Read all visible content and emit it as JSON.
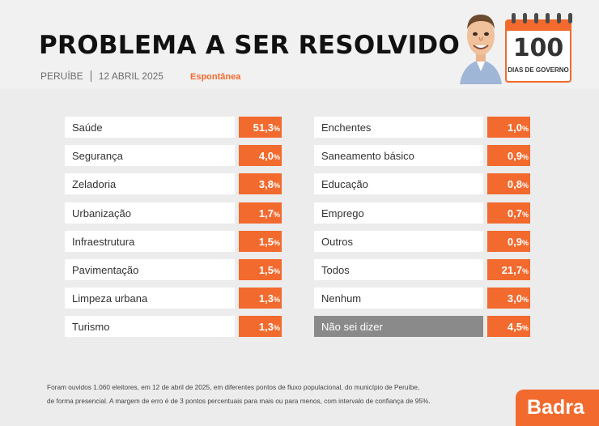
{
  "header": {
    "title": "PROBLEMA A SER RESOLVIDO",
    "city": "PERUÍBE",
    "date": "12 ABRIL 2025",
    "mode": "Espontânea",
    "badge_number": "100",
    "badge_text": "DIAS DE GOVERNO"
  },
  "chart_data": {
    "type": "table",
    "unit": "%",
    "categories": [
      "Saúde",
      "Segurança",
      "Zeladoria",
      "Urbanização",
      "Infraestrutura",
      "Pavimentação",
      "Limpeza urbana",
      "Turismo",
      "Enchentes",
      "Saneamento básico",
      "Educação",
      "Emprego",
      "Outros",
      "Todos",
      "Nenhum",
      "Não sei dizer"
    ],
    "values": [
      51.3,
      4.0,
      3.8,
      1.7,
      1.5,
      1.5,
      1.3,
      1.3,
      1.0,
      0.9,
      0.8,
      0.7,
      0.9,
      21.7,
      3.0,
      4.5
    ],
    "value_labels": [
      "51,3",
      "4,0",
      "3,8",
      "1,7",
      "1,5",
      "1,5",
      "1,3",
      "1,3",
      "1,0",
      "0,9",
      "0,8",
      "0,7",
      "0,9",
      "21,7",
      "3,0",
      "4,5"
    ]
  },
  "footnote": {
    "line1": "Foram ouvidos 1.060 eleitores, em 12 de abril de 2025, em diferentes pontos de fluxo populacional, do município de Peruíbe,",
    "line2": "de forma presencial. A margem de erro é de 3 pontos percentuais para mais ou para menos, com intervalo de confiança de 95%."
  },
  "brand": "Badra",
  "colors": {
    "accent": "#f26a2e",
    "dark_label": "#8a8a8a",
    "background": "#ececec"
  }
}
